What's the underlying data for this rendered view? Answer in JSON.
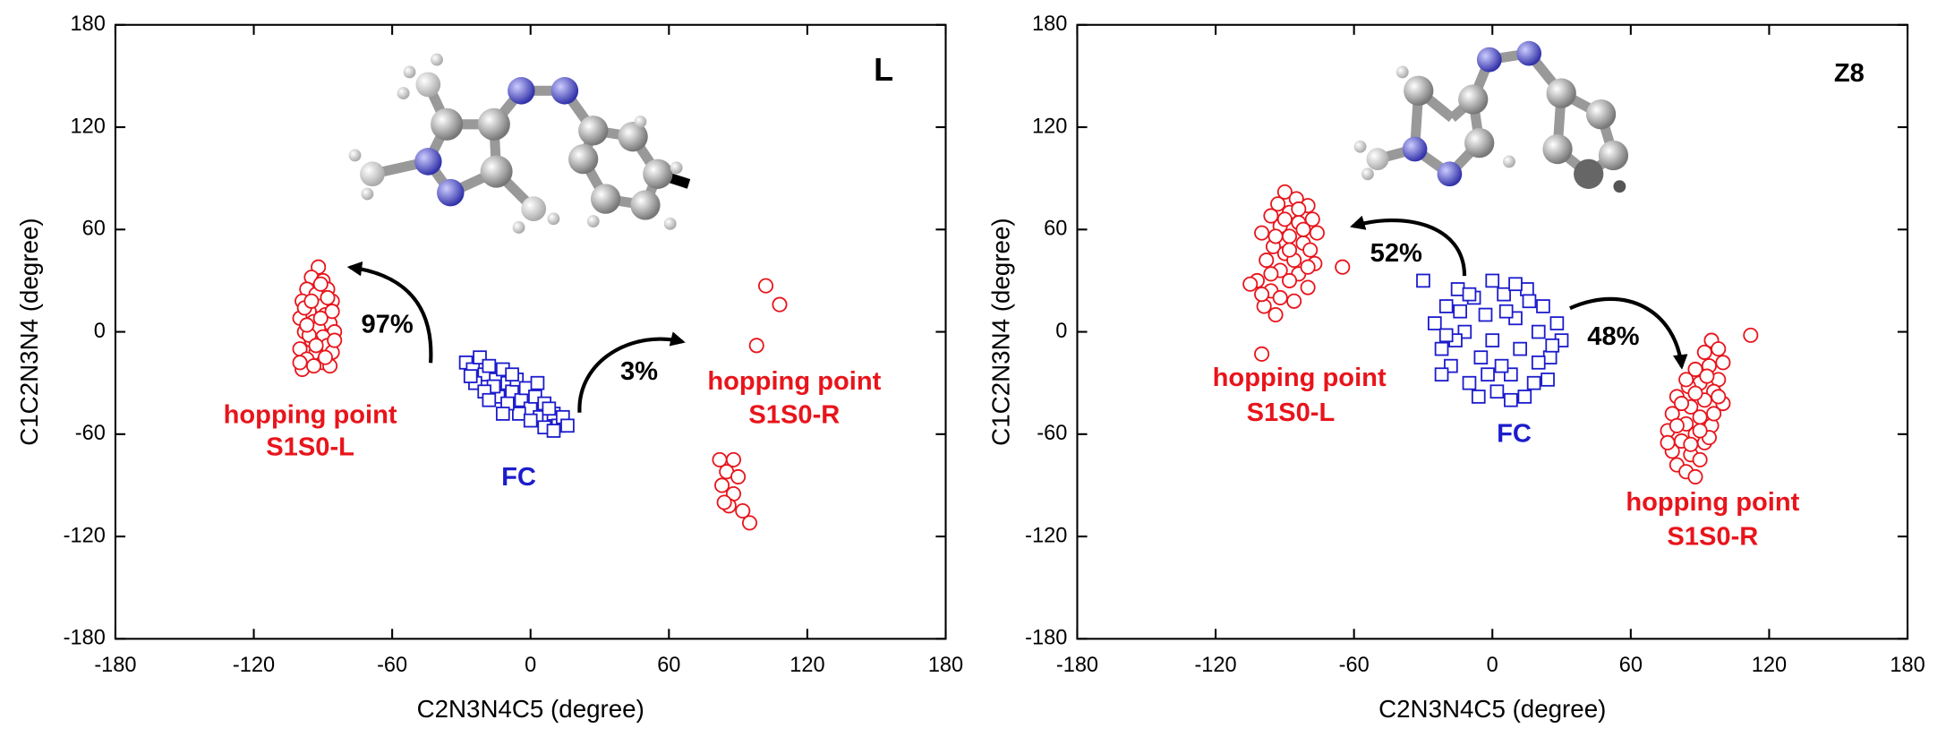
{
  "chart_data": [
    {
      "type": "scatter",
      "panel_label": "L",
      "xlabel": "C2N3N4C5 (degree)",
      "ylabel": "C1C2N3N4 (degree)",
      "xlim": [
        -180,
        180
      ],
      "ylim": [
        -180,
        180
      ],
      "xticks": [
        -180,
        -120,
        -60,
        0,
        60,
        120,
        180
      ],
      "yticks": [
        -180,
        -120,
        -60,
        0,
        60,
        120,
        180
      ],
      "annotations": [
        "97%",
        "3%",
        "hopping point",
        "hopping point"
      ],
      "series": [
        {
          "name": "FC",
          "color": "#1c1ccc",
          "marker": "square",
          "x": [
            -28,
            -25,
            -22,
            -20,
            -18,
            -15,
            -24,
            -12,
            -10,
            -8,
            -14,
            -6,
            -4,
            -2,
            0,
            2,
            -5,
            4,
            6,
            8,
            10,
            12,
            14,
            -16,
            -20,
            -10,
            0,
            6,
            10,
            -26,
            -18,
            -8,
            3,
            8,
            16,
            -12
          ],
          "values": [
            -18,
            -22,
            -15,
            -25,
            -20,
            -28,
            -30,
            -22,
            -30,
            -35,
            -38,
            -28,
            -40,
            -33,
            -45,
            -38,
            -48,
            -50,
            -42,
            -52,
            -48,
            -55,
            -50,
            -32,
            -35,
            -42,
            -52,
            -56,
            -58,
            -26,
            -40,
            -25,
            -30,
            -45,
            -55,
            -48
          ]
        },
        {
          "name": "S1S0-L",
          "color": "#e8141b",
          "marker": "circle",
          "x": [
            -92,
            -95,
            -90,
            -97,
            -88,
            -93,
            -99,
            -86,
            -91,
            -96,
            -89,
            -100,
            -94,
            -87,
            -92,
            -98,
            -85,
            -90,
            -95,
            -88,
            -100,
            -93,
            -86,
            -97,
            -90,
            -99,
            -87,
            -94,
            -91,
            -96,
            -89,
            -98,
            -86,
            -93,
            -100,
            -88,
            -95,
            -91,
            -97,
            -85
          ],
          "values": [
            38,
            32,
            30,
            25,
            25,
            22,
            18,
            18,
            15,
            12,
            10,
            8,
            6,
            5,
            2,
            0,
            0,
            -3,
            -5,
            -8,
            -10,
            -12,
            -12,
            -16,
            -18,
            -22,
            -20,
            -20,
            28,
            -2,
            -15,
            14,
            12,
            -8,
            -18,
            20,
            18,
            8,
            4,
            -5
          ]
        },
        {
          "name": "S1S0-R",
          "color": "#e8141b",
          "marker": "circle",
          "x": [
            102,
            108,
            98,
            82,
            88,
            85,
            90,
            83,
            88,
            86,
            92,
            95,
            84
          ],
          "values": [
            27,
            16,
            -8,
            -75,
            -75,
            -82,
            -85,
            -90,
            -95,
            -102,
            -105,
            -112,
            -100
          ]
        }
      ]
    },
    {
      "type": "scatter",
      "panel_label": "Z8",
      "xlabel": "C2N3N4C5 (degree)",
      "ylabel": "C1C2N3N4 (degree)",
      "xlim": [
        -180,
        180
      ],
      "ylim": [
        -180,
        180
      ],
      "xticks": [
        -180,
        -120,
        -60,
        0,
        60,
        120,
        180
      ],
      "yticks": [
        -180,
        -120,
        -60,
        0,
        60,
        120,
        180
      ],
      "annotations": [
        "52%",
        "48%",
        "hopping point",
        "hopping point"
      ],
      "series": [
        {
          "name": "FC",
          "color": "#1c1ccc",
          "marker": "square",
          "x": [
            -25,
            -22,
            -20,
            -18,
            -15,
            -12,
            -10,
            -8,
            -5,
            -3,
            0,
            0,
            2,
            5,
            8,
            10,
            12,
            15,
            18,
            20,
            22,
            25,
            28,
            30,
            -22,
            -16,
            -6,
            4,
            14,
            24,
            -14,
            6,
            16,
            -2,
            10,
            -20,
            20,
            26,
            -10,
            8,
            -30
          ],
          "values": [
            5,
            -10,
            15,
            -20,
            25,
            0,
            -30,
            20,
            -15,
            10,
            30,
            -5,
            -35,
            22,
            -25,
            8,
            -10,
            25,
            -30,
            0,
            15,
            -15,
            5,
            -5,
            -25,
            -5,
            -38,
            -20,
            -38,
            -28,
            12,
            12,
            18,
            -25,
            28,
            -2,
            -18,
            -8,
            22,
            -40,
            30
          ]
        },
        {
          "name": "S1S0-L",
          "color": "#e8141b",
          "marker": "circle",
          "x": [
            -90,
            -85,
            -93,
            -80,
            -88,
            -96,
            -78,
            -84,
            -92,
            -100,
            -76,
            -88,
            -82,
            -95,
            -79,
            -90,
            -86,
            -98,
            -77,
            -92,
            -84,
            -102,
            -88,
            -96,
            -80,
            -92,
            -99,
            -86,
            -94,
            -105,
            -82,
            -90,
            -80,
            -96,
            -88,
            -84,
            -94,
            -100,
            -65,
            -100
          ],
          "values": [
            82,
            78,
            75,
            74,
            70,
            68,
            66,
            64,
            62,
            58,
            58,
            56,
            52,
            50,
            48,
            46,
            42,
            42,
            40,
            36,
            34,
            30,
            30,
            24,
            26,
            20,
            15,
            18,
            10,
            28,
            60,
            66,
            38,
            34,
            48,
            72,
            56,
            22,
            38,
            -13
          ]
        },
        {
          "name": "S1S0-R",
          "color": "#e8141b",
          "marker": "circle",
          "x": [
            95,
            98,
            92,
            100,
            94,
            88,
            98,
            90,
            85,
            96,
            80,
            92,
            86,
            100,
            78,
            90,
            84,
            95,
            76,
            88,
            82,
            92,
            78,
            86,
            90,
            80,
            84,
            88,
            96,
            82,
            88,
            93,
            86,
            80,
            94,
            76,
            84,
            90,
            98,
            112
          ],
          "values": [
            -5,
            -10,
            -12,
            -18,
            -20,
            -22,
            -28,
            -30,
            -32,
            -35,
            -38,
            -40,
            -44,
            -42,
            -48,
            -50,
            -54,
            -55,
            -58,
            -60,
            -64,
            -65,
            -70,
            -72,
            -75,
            -78,
            -82,
            -85,
            -48,
            -42,
            -36,
            -26,
            -66,
            -55,
            -62,
            -65,
            -28,
            -58,
            -38,
            -2
          ]
        }
      ]
    }
  ]
}
